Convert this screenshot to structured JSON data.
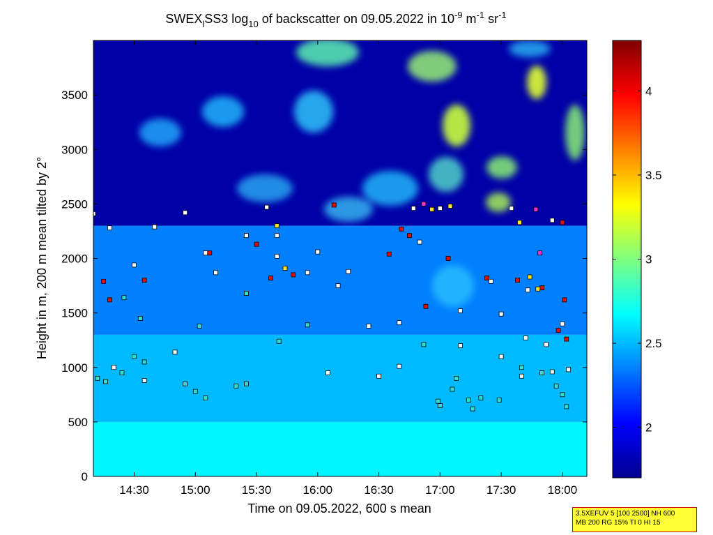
{
  "chart_data": {
    "type": "heatmap",
    "title": {
      "prefix": "SWEX",
      "sub1": "l",
      "mid": "SS3 log",
      "sub2": "10",
      "rest": " of backscatter on 09.05.2022 in 10",
      "sup1": "-9",
      "unit_m": " m",
      "sup2": "-1",
      "unit_sr": " sr",
      "sup3": "-1"
    },
    "xlabel": "Time on 09.05.2022, 600 s mean",
    "ylabel": "Height in m, 200 m mean tilted by 2°",
    "x_range": [
      "14:10",
      "18:12"
    ],
    "y_range": [
      0,
      4000
    ],
    "x_ticks": [
      {
        "label": "14:30",
        "minutes": 870
      },
      {
        "label": "15:00",
        "minutes": 900
      },
      {
        "label": "15:30",
        "minutes": 930
      },
      {
        "label": "16:00",
        "minutes": 960
      },
      {
        "label": "16:30",
        "minutes": 990
      },
      {
        "label": "17:00",
        "minutes": 1020
      },
      {
        "label": "17:30",
        "minutes": 1050
      },
      {
        "label": "18:00",
        "minutes": 1080
      }
    ],
    "y_ticks": [
      0,
      500,
      1000,
      1500,
      2000,
      2500,
      3000,
      3500
    ],
    "colorbar": {
      "range": [
        1.7,
        4.3
      ],
      "ticks": [
        "2",
        "2.5",
        "3",
        "3.5",
        "4"
      ],
      "tick_values": [
        2,
        2.5,
        3,
        3.5,
        4
      ],
      "colormap": "jet"
    },
    "layers": [
      {
        "name": "surface",
        "top_m": 500,
        "value": 2.65
      },
      {
        "name": "lower",
        "top_m": 1300,
        "value": 2.5
      },
      {
        "name": "mixed",
        "top_m": 2300,
        "value": 2.35
      },
      {
        "name": "upper",
        "top_m": 4000,
        "value": 1.8
      }
    ],
    "series": [
      {
        "marker_class": "low",
        "color": "#33e0d0",
        "points": [
          [
            852,
            900
          ],
          [
            856,
            870
          ],
          [
            864,
            950
          ],
          [
            870,
            1100
          ],
          [
            875,
            1050
          ],
          [
            895,
            850
          ],
          [
            900,
            780
          ],
          [
            905,
            720
          ],
          [
            920,
            830
          ],
          [
            925,
            850
          ],
          [
            941,
            1240
          ],
          [
            955,
            1390
          ],
          [
            1012,
            1210
          ],
          [
            1019,
            690
          ],
          [
            1020,
            650
          ],
          [
            1026,
            800
          ],
          [
            1028,
            900
          ],
          [
            1034,
            700
          ],
          [
            1036,
            620
          ],
          [
            1040,
            720
          ],
          [
            1049,
            700
          ],
          [
            1060,
            1000
          ],
          [
            1070,
            950
          ],
          [
            1077,
            830
          ],
          [
            1080,
            750
          ],
          [
            1082,
            640
          ],
          [
            873,
            1450
          ],
          [
            865,
            1640
          ],
          [
            902,
            1380
          ],
          [
            925,
            1680
          ]
        ]
      },
      {
        "marker_class": "mid",
        "color": "#ffffff",
        "points": [
          [
            850,
            2410
          ],
          [
            858,
            2280
          ],
          [
            870,
            1940
          ],
          [
            880,
            2290
          ],
          [
            895,
            2420
          ],
          [
            905,
            2050
          ],
          [
            910,
            1870
          ],
          [
            925,
            2210
          ],
          [
            935,
            2470
          ],
          [
            940,
            2210
          ],
          [
            955,
            1870
          ],
          [
            970,
            1750
          ],
          [
            985,
            1380
          ],
          [
            1000,
            1410
          ],
          [
            1010,
            2150
          ],
          [
            1020,
            2460
          ],
          [
            1045,
            1790
          ],
          [
            1075,
            2350
          ],
          [
            1055,
            2460
          ],
          [
            1062,
            1270
          ],
          [
            1072,
            1210
          ],
          [
            1080,
            1400
          ],
          [
            860,
            1000
          ],
          [
            875,
            880
          ],
          [
            890,
            1140
          ],
          [
            965,
            950
          ],
          [
            990,
            920
          ],
          [
            1000,
            1010
          ],
          [
            1030,
            1200
          ],
          [
            1050,
            1100
          ],
          [
            1060,
            920
          ],
          [
            1075,
            960
          ],
          [
            1083,
            980
          ],
          [
            1030,
            1520
          ],
          [
            1050,
            1490
          ],
          [
            975,
            1880
          ],
          [
            940,
            2020
          ],
          [
            960,
            2060
          ],
          [
            1007,
            2460
          ],
          [
            1063,
            1710
          ]
        ]
      },
      {
        "marker_class": "high",
        "color": "#e01010",
        "points": [
          [
            855,
            1790
          ],
          [
            858,
            1620
          ],
          [
            875,
            1800
          ],
          [
            907,
            2050
          ],
          [
            930,
            2130
          ],
          [
            937,
            1820
          ],
          [
            948,
            1850
          ],
          [
            968,
            2490
          ],
          [
            995,
            2040
          ],
          [
            1001,
            2270
          ],
          [
            1005,
            2210
          ],
          [
            1013,
            1560
          ],
          [
            1024,
            2000
          ],
          [
            1043,
            1820
          ],
          [
            1058,
            1800
          ],
          [
            1070,
            1730
          ],
          [
            1081,
            1620
          ],
          [
            1082,
            1260
          ],
          [
            1078,
            1340
          ],
          [
            1080,
            2330
          ]
        ]
      },
      {
        "marker_class": "peak",
        "color": "#ffe51f",
        "points": [
          [
            940,
            2300
          ],
          [
            944,
            1910
          ],
          [
            1016,
            2450
          ],
          [
            1025,
            2480
          ],
          [
            1059,
            2330
          ],
          [
            1064,
            1830
          ],
          [
            1068,
            1720
          ]
        ]
      },
      {
        "marker_class": "magenta",
        "color": "#ff33cc",
        "points": [
          [
            1012,
            2500
          ],
          [
            1067,
            2450
          ],
          [
            1069,
            2050
          ]
        ]
      }
    ]
  },
  "info_box": {
    "line1": "3.5XEFUV 5 [100 2500] NH 600",
    "line2": "MB 200 RG 15% TI 0 HI 15"
  }
}
